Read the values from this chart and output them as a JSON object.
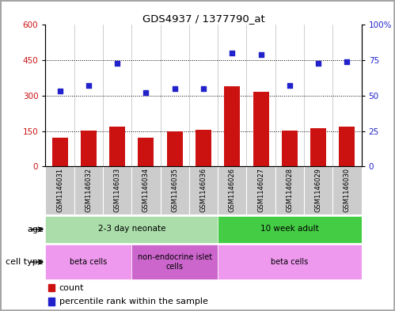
{
  "title": "GDS4937 / 1377790_at",
  "samples": [
    "GSM1146031",
    "GSM1146032",
    "GSM1146033",
    "GSM1146034",
    "GSM1146035",
    "GSM1146036",
    "GSM1146026",
    "GSM1146027",
    "GSM1146028",
    "GSM1146029",
    "GSM1146030"
  ],
  "counts": [
    120,
    152,
    168,
    120,
    150,
    154,
    340,
    315,
    151,
    162,
    170
  ],
  "percentile": [
    53,
    57,
    73,
    52,
    55,
    55,
    80,
    79,
    57,
    73,
    74
  ],
  "ylim_left": [
    0,
    600
  ],
  "ylim_right": [
    0,
    100
  ],
  "yticks_left": [
    0,
    150,
    300,
    450,
    600
  ],
  "yticks_right": [
    0,
    25,
    50,
    75,
    100
  ],
  "ytick_labels_right": [
    "0",
    "25",
    "50",
    "75",
    "100%"
  ],
  "bar_color": "#cc1111",
  "scatter_color": "#2222cc",
  "left_tick_color": "#cc1111",
  "right_tick_color": "#2222cc",
  "age_groups": [
    {
      "label": "2-3 day neonate",
      "start": 0,
      "end": 6,
      "color": "#aaddaa"
    },
    {
      "label": "10 week adult",
      "start": 6,
      "end": 11,
      "color": "#44cc44"
    }
  ],
  "cell_type_groups": [
    {
      "label": "beta cells",
      "start": 0,
      "end": 3,
      "color": "#ee99ee"
    },
    {
      "label": "non-endocrine islet\ncells",
      "start": 3,
      "end": 6,
      "color": "#cc66cc"
    },
    {
      "label": "beta cells",
      "start": 6,
      "end": 11,
      "color": "#ee99ee"
    }
  ],
  "legend_items": [
    {
      "label": "count",
      "color": "#cc1111",
      "marker": "s"
    },
    {
      "label": "percentile rank within the sample",
      "color": "#2222cc",
      "marker": "s"
    }
  ],
  "sample_area_bg": "#cccccc",
  "fig_border_color": "#888888"
}
